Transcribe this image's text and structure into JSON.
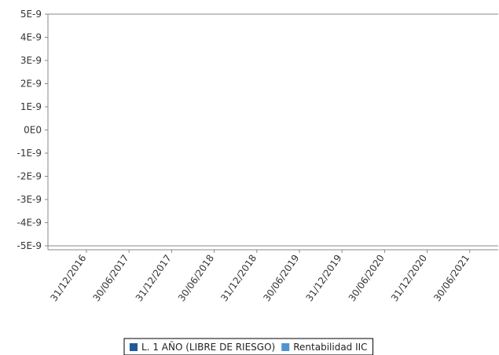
{
  "chart_data": {
    "type": "line",
    "title": "",
    "xlabel": "",
    "ylabel": "",
    "x_ticks": [
      "31/12/2016",
      "30/06/2017",
      "31/12/2017",
      "30/06/2018",
      "31/12/2018",
      "30/06/2019",
      "31/12/2019",
      "30/06/2020",
      "31/12/2020",
      "30/06/2021"
    ],
    "y_ticks": [
      "5E-9",
      "4E-9",
      "3E-9",
      "2E-9",
      "1E-9",
      "0E0",
      "-1E-9",
      "-2E-9",
      "-3E-9",
      "-4E-9",
      "-5E-9"
    ],
    "ylim": [
      -5e-09,
      5e-09
    ],
    "grid": false,
    "legend_position": "bottom",
    "series": [
      {
        "name": "L. 1 AÑO (LIBRE DE RIESGO)",
        "color": "#1f5b99",
        "values": []
      },
      {
        "name": "Rentabilidad IIC",
        "color": "#4f94d0",
        "values": []
      }
    ]
  }
}
